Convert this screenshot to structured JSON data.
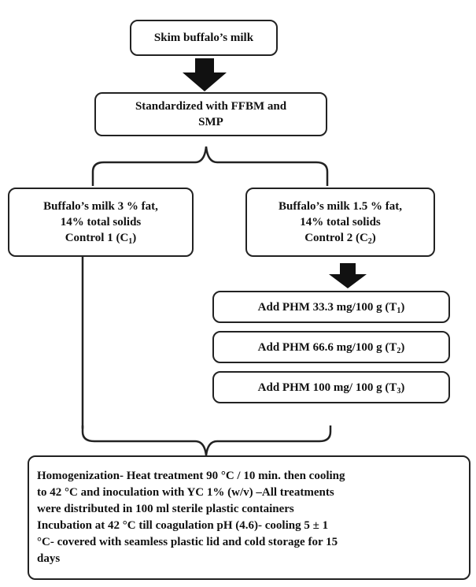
{
  "nodes": [
    {
      "lines": [
        [
          "Skim buffalo’s milk"
        ]
      ]
    },
    {
      "lines": [
        [
          "Standardized with FFBM and"
        ],
        [
          "SMP"
        ]
      ]
    },
    {
      "lines": [
        [
          "Buffalo’s milk 3 % fat,"
        ],
        [
          "14% total solids"
        ],
        [
          "Control 1 (C",
          {
            "sub": "1"
          },
          ")"
        ]
      ]
    },
    {
      "lines": [
        [
          "Buffalo’s milk 1.5 % fat,"
        ],
        [
          "14% total solids"
        ],
        [
          "Control 2 (C",
          {
            "sub": "2"
          },
          ")"
        ]
      ]
    },
    {
      "lines": [
        [
          "Add PHM  33.3 mg/100 g (T",
          {
            "sub": "1"
          },
          ")"
        ]
      ]
    },
    {
      "lines": [
        [
          "Add PHM 66.6 mg/100 g (T",
          {
            "sub": "2"
          },
          ")"
        ]
      ]
    },
    {
      "lines": [
        [
          "Add PHM 100 mg/ 100 g (T",
          {
            "sub": "3"
          },
          ")"
        ]
      ]
    },
    {
      "lines": [
        [
          "Homogenization- Heat treatment 90 °C / 10 min. then cooling"
        ],
        [
          "to 42 °C and inoculation  with YC 1% (w/v) –All treatments"
        ],
        [
          "were distributed in 100 ml sterile plastic containers"
        ],
        [
          "Incubation at 42 °C till coagulation pH (4.6)- cooling 5 ± 1"
        ],
        [
          "°C- covered with seamless plastic lid and cold storage for 15"
        ],
        [
          "days"
        ]
      ]
    }
  ]
}
